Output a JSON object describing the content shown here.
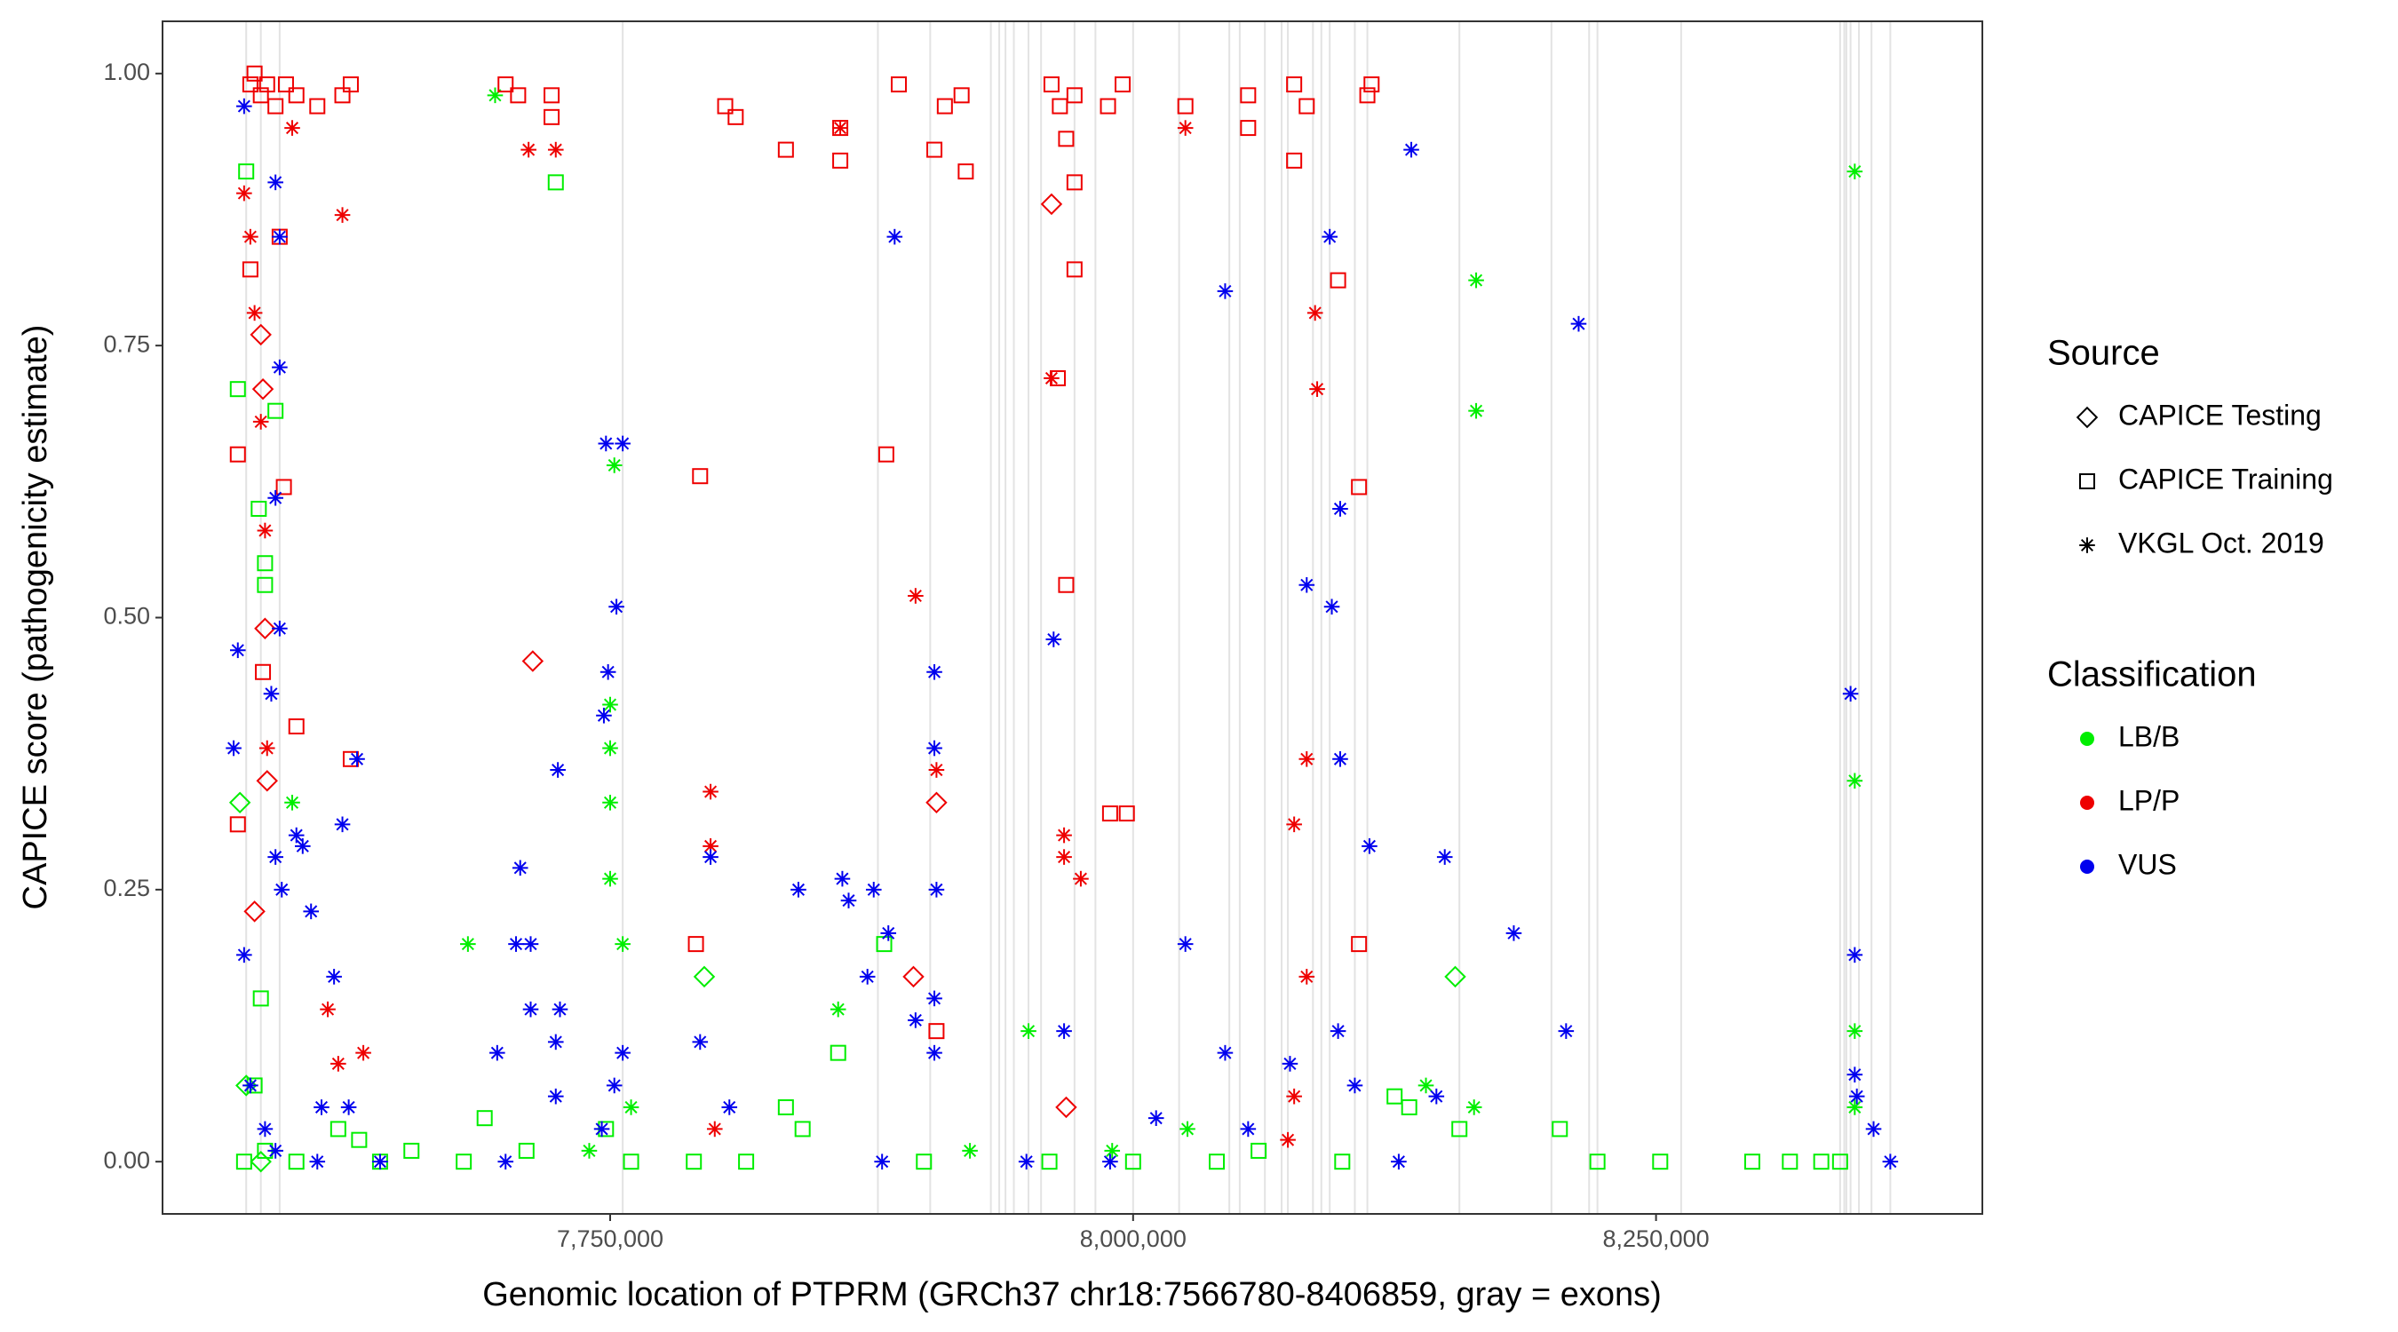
{
  "chart_data": {
    "type": "scatter",
    "xlabel": "Genomic location of PTPRM (GRCh37 chr18:7566780-8406859, gray = exons)",
    "ylabel": "CAPICE score (pathogenicity estimate)",
    "xlim": [
      7536000,
      8406000
    ],
    "ylim": [
      -0.048,
      1.048
    ],
    "xticks": [
      {
        "value": 7750000,
        "label": "7,750,000"
      },
      {
        "value": 8000000,
        "label": "8,000,000"
      },
      {
        "value": 8250000,
        "label": "8,250,000"
      }
    ],
    "yticks": [
      {
        "value": 0,
        "label": "0.00"
      },
      {
        "value": 0.25,
        "label": "0.25"
      },
      {
        "value": 0.5,
        "label": "0.50"
      },
      {
        "value": 0.75,
        "label": "0.75"
      },
      {
        "value": 1,
        "label": "1.00"
      }
    ],
    "grid": false,
    "exon_color": "#e3e3e3",
    "exons": [
      7576000,
      7583000,
      7592000,
      7756000,
      7878000,
      7903000,
      7932000,
      7936000,
      7939000,
      7943000,
      7950000,
      7956000,
      7972000,
      7982000,
      8000000,
      8022000,
      8046000,
      8051000,
      8063000,
      8071000,
      8074000,
      8086000,
      8090000,
      8094000,
      8106000,
      8112000,
      8156000,
      8200000,
      8218000,
      8222000,
      8262000,
      8338000,
      8340000,
      8341000,
      8343000,
      8347000,
      8353000,
      8362000
    ],
    "source_legend": {
      "title": "Source",
      "items": [
        {
          "name": "CAPICE Testing",
          "shape": "diamond"
        },
        {
          "name": "CAPICE Training",
          "shape": "square"
        },
        {
          "name": "VKGL Oct. 2019",
          "shape": "asterisk"
        }
      ]
    },
    "color_legend_title": "Classification",
    "series": [
      {
        "name": "LB/B",
        "color": "#00ee00",
        "groups": [
          {
            "shape": "square",
            "x": [
              7572000,
              7585000,
              7585000,
              7590000,
              7576000,
              7582000,
              7583000,
              7580000,
              7585000,
              7575000,
              7600000,
              7620000,
              7630000,
              7640000,
              7655000,
              7680000,
              7690000,
              7710000,
              7724000,
              7748000,
              7760000,
              7790000,
              7815000,
              7834000,
              7842000,
              7859000,
              7881000,
              7900000,
              7960000,
              8000000,
              8040000,
              8060000,
              8100000,
              8125000,
              8132000,
              8156000,
              8204000,
              8222000,
              8252000,
              8296000,
              8314000,
              8329000,
              8338000
            ],
            "y": [
              0.71,
              0.55,
              0.53,
              0.69,
              0.91,
              0.6,
              0.15,
              0.07,
              0.01,
              0,
              0,
              0.03,
              0.02,
              0,
              0.01,
              0,
              0.04,
              0.01,
              0.9,
              0.03,
              0,
              0,
              0,
              0.05,
              0.03,
              0.1,
              0.2,
              0,
              0,
              0,
              0,
              0.01,
              0,
              0.06,
              0.05,
              0.03,
              0.03,
              0,
              0,
              0,
              0,
              0,
              0
            ]
          },
          {
            "shape": "asterisk",
            "x": [
              7695000,
              7598000,
              7682000,
              7752000,
              7750000,
              7750000,
              7750000,
              7750000,
              7756000,
              7760000,
              7859000,
              7950000,
              7922000,
              8026000,
              8140000,
              8164000,
              8164000,
              8163000,
              8345000,
              8345000,
              8345000,
              8345000,
              7990000,
              7740000
            ],
            "y": [
              0.98,
              0.33,
              0.2,
              0.64,
              0.42,
              0.38,
              0.33,
              0.26,
              0.2,
              0.05,
              0.14,
              0.12,
              0.01,
              0.03,
              0.07,
              0.81,
              0.69,
              0.05,
              0.91,
              0.35,
              0.12,
              0.05,
              0.01,
              0.01
            ]
          },
          {
            "shape": "diamond",
            "x": [
              7573000,
              7576000,
              7795000,
              8154000,
              7583000
            ],
            "y": [
              0.33,
              0.07,
              0.17,
              0.17,
              0
            ]
          }
        ]
      },
      {
        "name": "LP/P",
        "color": "#ee0000",
        "groups": [
          {
            "shape": "square",
            "x": [
              7578000,
              7580000,
              7583000,
              7586000,
              7590000,
              7595000,
              7600000,
              7610000,
              7622000,
              7626000,
              7700000,
              7706000,
              7722000,
              7722000,
              7805000,
              7810000,
              7834000,
              7860000,
              7860000,
              7888000,
              7905000,
              7910000,
              7918000,
              7920000,
              7961000,
              7965000,
              7968000,
              7972000,
              7988000,
              7995000,
              8025000,
              8055000,
              8055000,
              8077000,
              8077000,
              8083000,
              8114000,
              8112000,
              7578000,
              7572000,
              7584000,
              7592000,
              7594000,
              7600000,
              7626000,
              7793000,
              7882000,
              7964000,
              7968000,
              7972000,
              7972000,
              7989000,
              7997000,
              8098000,
              8108000,
              8108000,
              7791000,
              7906000,
              7572000
            ],
            "y": [
              0.99,
              1,
              0.98,
              0.99,
              0.97,
              0.99,
              0.98,
              0.97,
              0.98,
              0.99,
              0.99,
              0.98,
              0.98,
              0.96,
              0.97,
              0.96,
              0.93,
              0.95,
              0.92,
              0.99,
              0.93,
              0.97,
              0.98,
              0.91,
              0.99,
              0.97,
              0.94,
              0.98,
              0.97,
              0.99,
              0.97,
              0.95,
              0.98,
              0.99,
              0.92,
              0.97,
              0.99,
              0.98,
              0.82,
              0.65,
              0.45,
              0.85,
              0.62,
              0.4,
              0.37,
              0.63,
              0.65,
              0.72,
              0.53,
              0.82,
              0.9,
              0.32,
              0.32,
              0.81,
              0.62,
              0.2,
              0.2,
              0.12,
              0.31
            ]
          },
          {
            "shape": "asterisk",
            "x": [
              7575000,
              7578000,
              7580000,
              7583000,
              7585000,
              7586000,
              7598000,
              7622000,
              7711000,
              7724000,
              7860000,
              8025000,
              7798000,
              7798000,
              7896000,
              7906000,
              7961000,
              7967000,
              7967000,
              7975000,
              8077000,
              8083000,
              8087000,
              8088000,
              8083000,
              7615000,
              7632000,
              7620000,
              7800000,
              8077000,
              8074000
            ],
            "y": [
              0.89,
              0.85,
              0.78,
              0.68,
              0.58,
              0.38,
              0.95,
              0.87,
              0.93,
              0.93,
              0.95,
              0.95,
              0.34,
              0.29,
              0.52,
              0.36,
              0.72,
              0.3,
              0.28,
              0.26,
              0.31,
              0.37,
              0.78,
              0.71,
              0.17,
              0.14,
              0.1,
              0.09,
              0.03,
              0.06,
              0.02
            ]
          },
          {
            "shape": "diamond",
            "x": [
              7713000,
              7961000,
              7895000,
              7906000,
              7968000,
              7585000,
              7583000,
              7586000,
              7580000,
              7584000
            ],
            "y": [
              0.46,
              0.88,
              0.17,
              0.33,
              0.05,
              0.49,
              0.76,
              0.35,
              0.23,
              0.71
            ]
          }
        ]
      },
      {
        "name": "VUS",
        "color": "#0000ee",
        "groups": [
          {
            "shape": "asterisk",
            "x": [
              7575000,
              7590000,
              7592000,
              7592000,
              7590000,
              7592000,
              7588000,
              7572000,
              7570000,
              7575000,
              7590000,
              7593000,
              7600000,
              7607000,
              7603000,
              7622000,
              7618000,
              7629000,
              7612000,
              7625000,
              7578000,
              7585000,
              7590000,
              7610000,
              7640000,
              7748000,
              7756000,
              7753000,
              7749000,
              7747000,
              7725000,
              7707000,
              7705000,
              7712000,
              7712000,
              7726000,
              7696000,
              7724000,
              7756000,
              7752000,
              7724000,
              7746000,
              7798000,
              7793000,
              7807000,
              7840000,
              7861000,
              7864000,
              7876000,
              7883000,
              7873000,
              7896000,
              7905000,
              7905000,
              7906000,
              7905000,
              7905000,
              7886000,
              7962000,
              7967000,
              8044000,
              8025000,
              8044000,
              8055000,
              8075000,
              8083000,
              8095000,
              8099000,
              8099000,
              8094000,
              8098000,
              8106000,
              8113000,
              8133000,
              8149000,
              8145000,
              8182000,
              8213000,
              8207000,
              8343000,
              8345000,
              8345000,
              8346000,
              8354000,
              8362000,
              8011000,
              7989000,
              7949000,
              8127000,
              7880000,
              7700000
            ],
            "y": [
              0.97,
              0.9,
              0.85,
              0.73,
              0.61,
              0.49,
              0.43,
              0.47,
              0.38,
              0.19,
              0.28,
              0.25,
              0.3,
              0.23,
              0.29,
              0.31,
              0.17,
              0.37,
              0.05,
              0.05,
              0.07,
              0.03,
              0.01,
              0,
              0,
              0.66,
              0.66,
              0.51,
              0.45,
              0.41,
              0.36,
              0.27,
              0.2,
              0.2,
              0.14,
              0.14,
              0.1,
              0.11,
              0.1,
              0.07,
              0.06,
              0.03,
              0.28,
              0.11,
              0.05,
              0.25,
              0.26,
              0.24,
              0.25,
              0.21,
              0.17,
              0.13,
              0.45,
              0.38,
              0.25,
              0.15,
              0.1,
              0.85,
              0.48,
              0.12,
              0.8,
              0.2,
              0.1,
              0.03,
              0.09,
              0.53,
              0.51,
              0.6,
              0.37,
              0.85,
              0.12,
              0.07,
              0.29,
              0.93,
              0.28,
              0.06,
              0.21,
              0.77,
              0.12,
              0.43,
              0.19,
              0.08,
              0.06,
              0.03,
              0,
              0.04,
              0,
              0,
              0,
              0,
              0
            ]
          }
        ]
      }
    ]
  }
}
